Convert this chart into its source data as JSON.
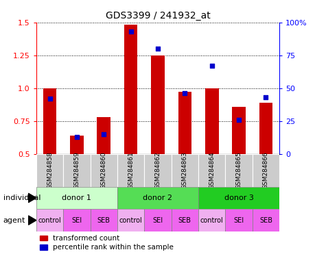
{
  "title": "GDS3399 / 241932_at",
  "samples": [
    "GSM284858",
    "GSM284859",
    "GSM284860",
    "GSM284861",
    "GSM284862",
    "GSM284863",
    "GSM284864",
    "GSM284865",
    "GSM284866"
  ],
  "transformed_counts": [
    1.0,
    0.64,
    0.78,
    1.48,
    1.25,
    0.97,
    1.0,
    0.86,
    0.89
  ],
  "percentile_ranks": [
    42,
    13,
    15,
    93,
    80,
    46,
    67,
    26,
    43
  ],
  "bar_color": "#cc0000",
  "dot_color": "#0000cc",
  "ylim_left": [
    0.5,
    1.5
  ],
  "ylim_right": [
    0,
    100
  ],
  "yticks_left": [
    0.5,
    0.75,
    1.0,
    1.25,
    1.5
  ],
  "ytick_labels_right": [
    "0",
    "25",
    "50",
    "75",
    "100%"
  ],
  "individuals": [
    {
      "label": "donor 1",
      "cols": [
        0,
        1,
        2
      ],
      "color": "#ccffcc"
    },
    {
      "label": "donor 2",
      "cols": [
        3,
        4,
        5
      ],
      "color": "#55dd55"
    },
    {
      "label": "donor 3",
      "cols": [
        6,
        7,
        8
      ],
      "color": "#22cc22"
    }
  ],
  "agents": [
    "control",
    "SEI",
    "SEB",
    "control",
    "SEI",
    "SEB",
    "control",
    "SEI",
    "SEB"
  ],
  "agent_bg": [
    "#f0b0f0",
    "#ee66ee",
    "#ee66ee",
    "#f0b0f0",
    "#ee66ee",
    "#ee66ee",
    "#f0b0f0",
    "#ee66ee",
    "#ee66ee"
  ],
  "sample_bg_color": "#cccccc",
  "legend_red_label": "transformed count",
  "legend_blue_label": "percentile rank within the sample",
  "bar_width": 0.5
}
